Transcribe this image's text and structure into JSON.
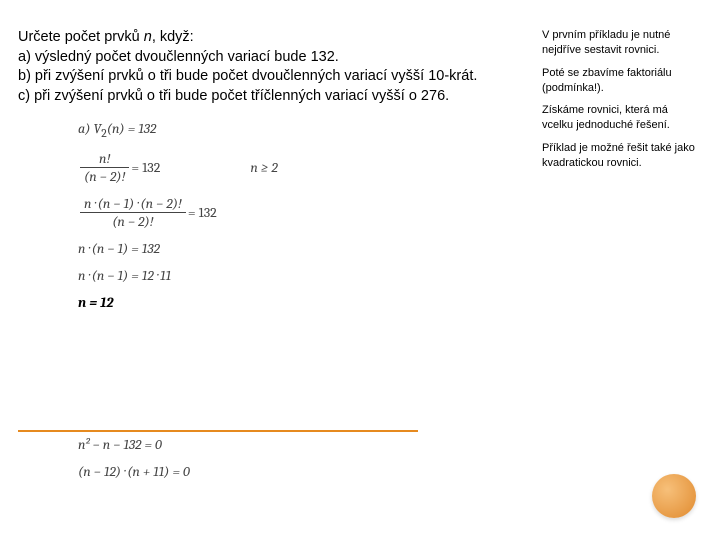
{
  "task": {
    "intro_a": "Určete počet prvků ",
    "intro_n": "n",
    "intro_b": ", když:",
    "a": "a) výsledný počet dvoučlenných variací bude 132.",
    "b": "b) při zvýšení prvků o tři bude počet dvoučlenných variací vyšší 10-krát.",
    "c": "c)  při zvýšení prvků o tři bude počet tříčlenných variací vyšší o 276."
  },
  "side": {
    "p1": "V prvním příkladu je nutné nejdříve sestavit rovnici.",
    "p2": "Poté se zbavíme faktoriálu (podmínka!).",
    "p3": "Získáme rovnici, která má vcelku jednoduché řešení.",
    "p4": "Příklad je možné řešit také jako kvadratickou rovnici."
  },
  "math": {
    "line1_lhs": "a) V",
    "line1_sub": "2",
    "line1_arg": "(n) = 132",
    "frac_num": "n!",
    "frac_den": "(n − 2)!",
    "eq132": " = 132",
    "cond": "n ≥ 2",
    "long_num": "n · (n − 1) · (n − 2)!",
    "long_den": "(n − 2)!",
    "line_nn1": "n · (n − 1) = 132",
    "line_1211": "n · (n − 1) = 12 · 11",
    "result": "n = 12",
    "quad1": "n² − n − 132 = 0",
    "quad2": "(n − 12) · (n + 11) = 0"
  },
  "colors": {
    "rule": "#e68a1f"
  }
}
